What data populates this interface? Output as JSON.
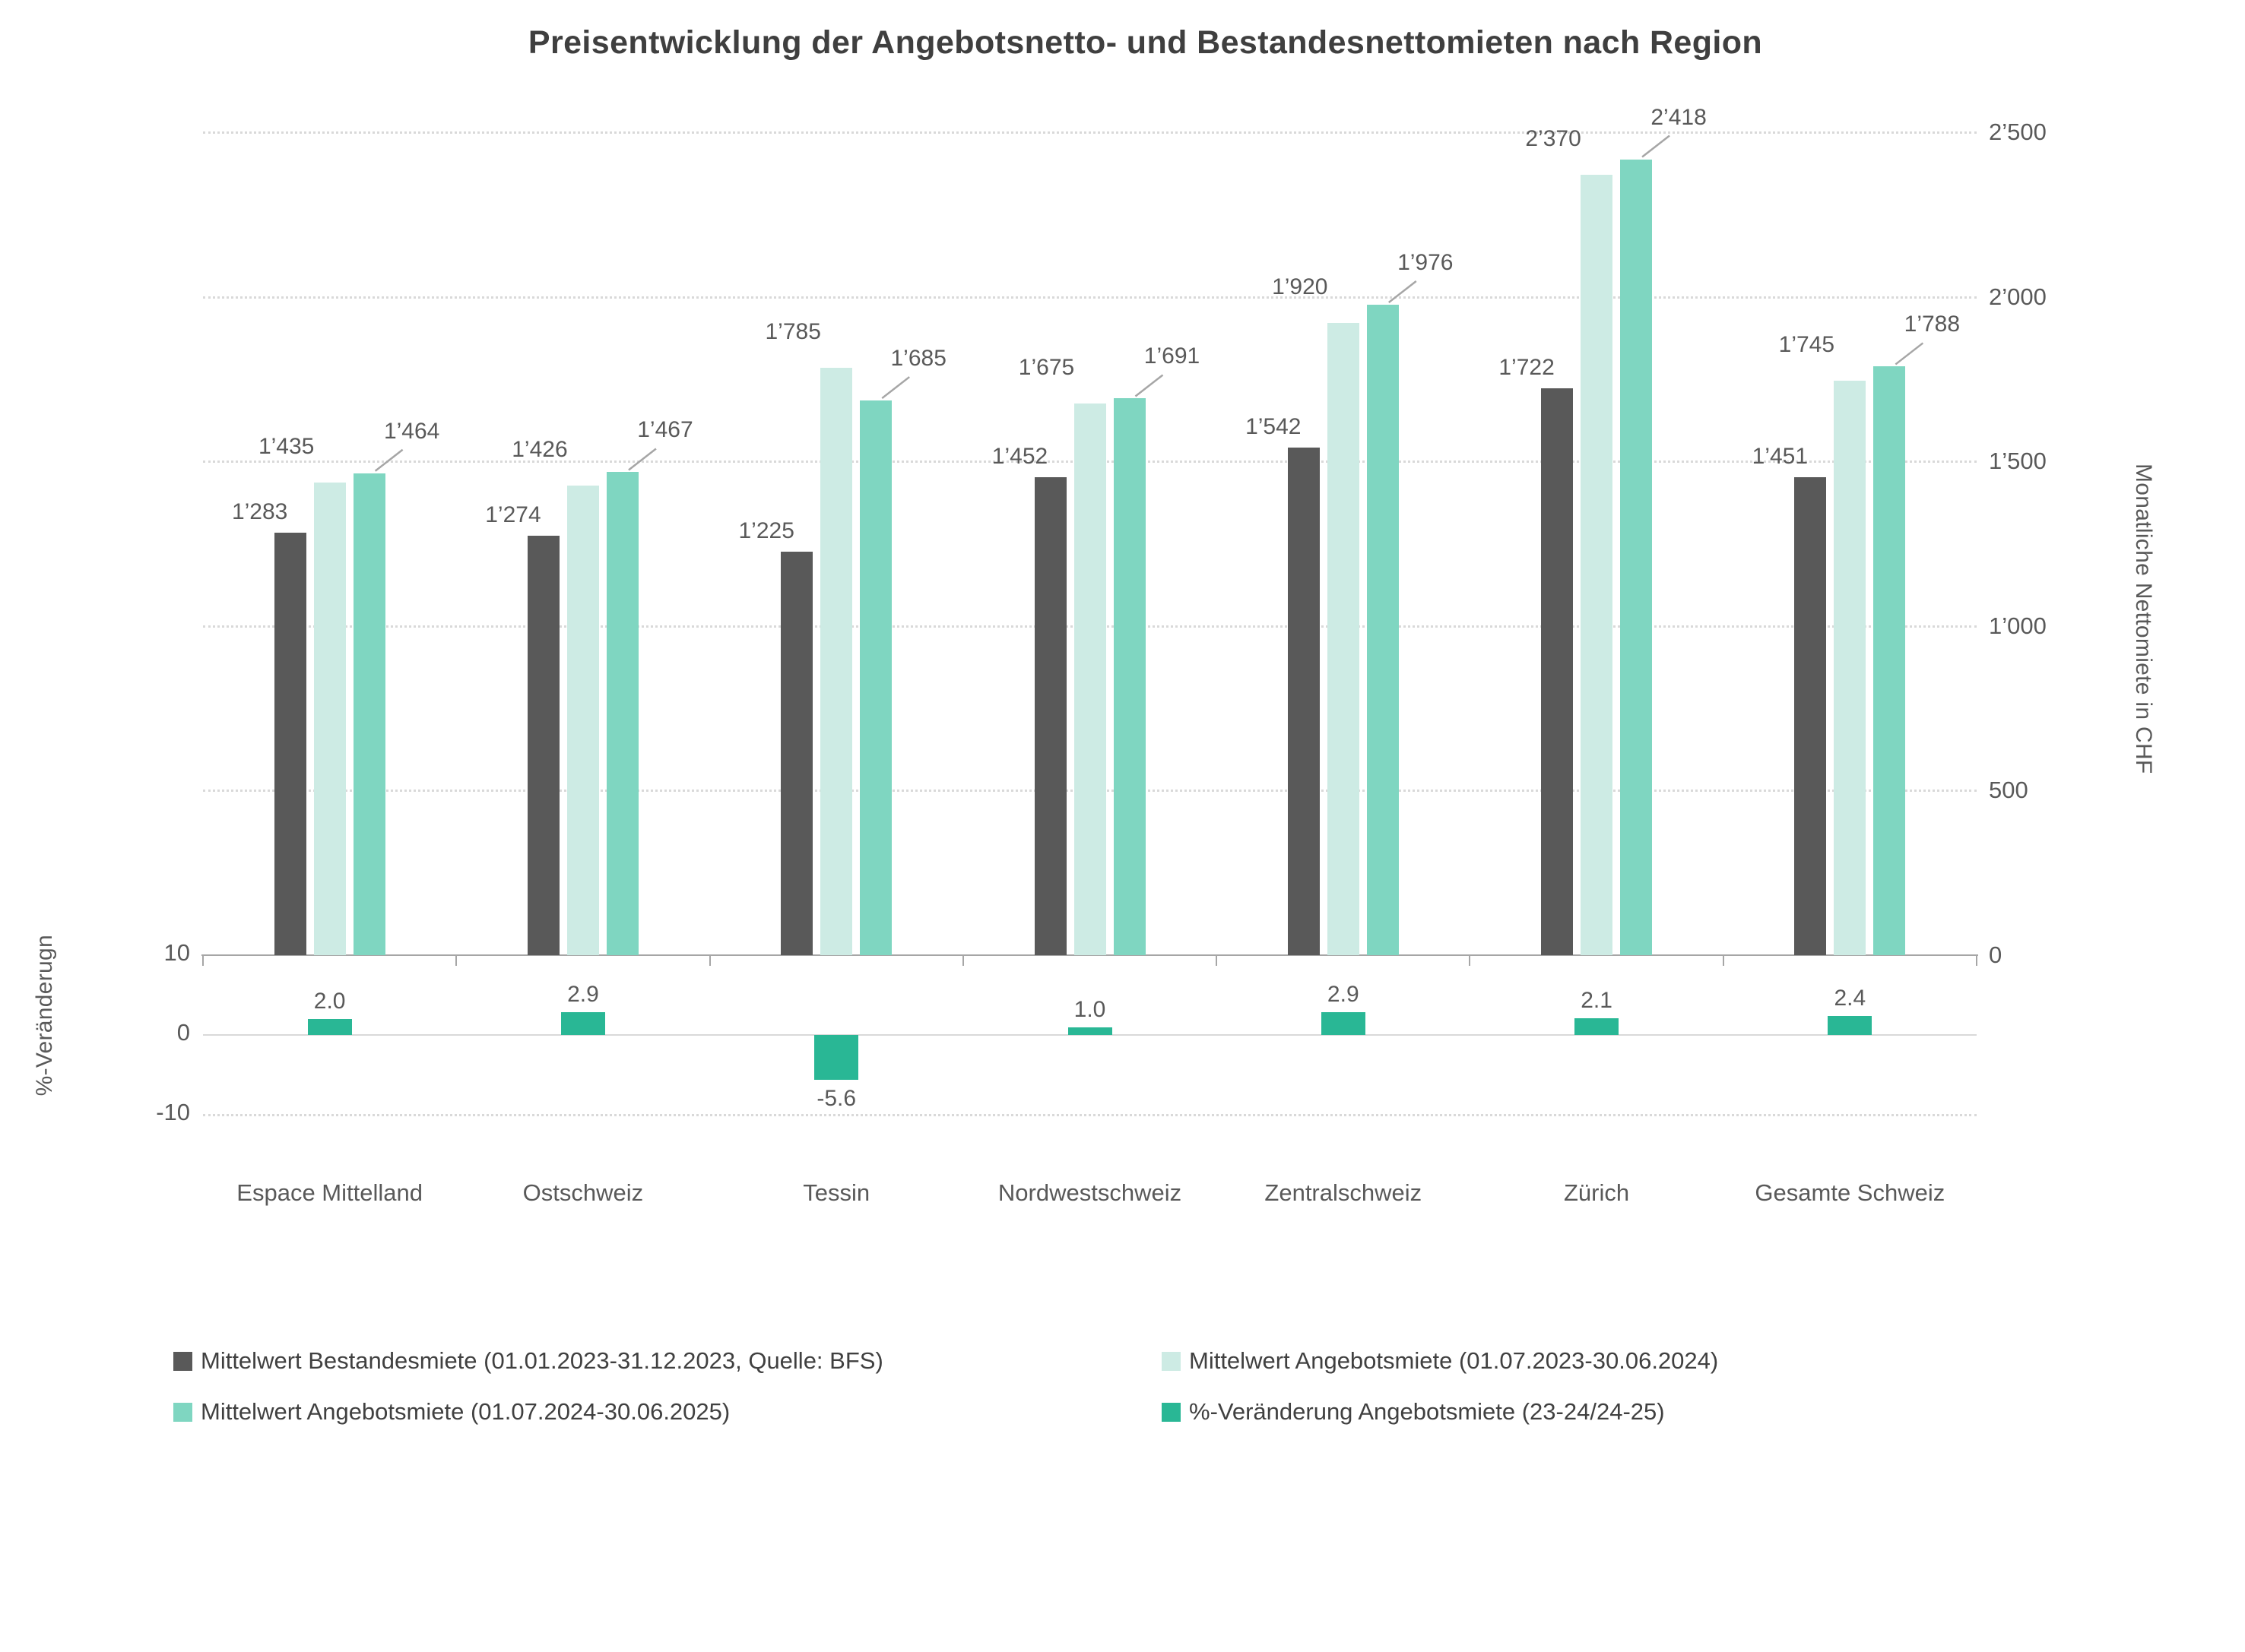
{
  "chart_data": {
    "type": "bar",
    "title": "Preisentwicklung der Angebotsnetto- und Bestandesnettomieten nach Region",
    "categories": [
      "Espace Mittelland",
      "Ostschweiz",
      "Tessin",
      "Nordwestschweiz",
      "Zentralschweiz",
      "Zürich",
      "Gesamte Schweiz"
    ],
    "series": [
      {
        "name": "Mittelwert Bestandesmiete (01.01.2023-31.12.2023, Quelle: BFS)",
        "axis": "chf",
        "color": "#595959",
        "values": [
          1283,
          1274,
          1225,
          1452,
          1542,
          1722,
          1451
        ],
        "labels": [
          "1’283",
          "1’274",
          "1’225",
          "1’452",
          "1’542",
          "1’722",
          "1’451"
        ]
      },
      {
        "name": "Mittelwert Angebotsmiete (01.07.2023-30.06.2024)",
        "axis": "chf",
        "color": "#cdebe4",
        "values": [
          1435,
          1426,
          1785,
          1675,
          1920,
          2370,
          1745
        ],
        "labels": [
          "1’435",
          "1’426",
          "1’785",
          "1’675",
          "1’920",
          "2’370",
          "1’745"
        ]
      },
      {
        "name": "Mittelwert Angebotsmiete (01.07.2024-30.06.2025)",
        "axis": "chf",
        "color": "#7fd6c1",
        "values": [
          1464,
          1467,
          1685,
          1691,
          1976,
          2418,
          1788
        ],
        "labels": [
          "1’464",
          "1’467",
          "1’685",
          "1’691",
          "1’976",
          "2’418",
          "1’788"
        ]
      },
      {
        "name": "%-Veränderung Angebotsmiete (23-24/24-25)",
        "axis": "pct",
        "color": "#29b795",
        "values": [
          2.0,
          2.9,
          -5.6,
          1.0,
          2.9,
          2.1,
          2.4
        ],
        "labels": [
          "2.0",
          "2.9",
          "-5.6",
          "1.0",
          "2.9",
          "2.1",
          "2.4"
        ]
      }
    ],
    "right_axis": {
      "label": "Monatliche Nettomiete in CHF",
      "max": 2500,
      "tick_values": [
        0,
        500,
        1000,
        1500,
        2000,
        2500
      ],
      "ticks": [
        "0",
        "500",
        "1’000",
        "1’500",
        "2’000",
        "2’500"
      ]
    },
    "left_axis": {
      "label": "%-Veränderugn",
      "tick_values": [
        10,
        0,
        -10
      ],
      "ticks": [
        "10",
        "0",
        "-10"
      ]
    },
    "grid": true,
    "legend_position": "bottom"
  }
}
